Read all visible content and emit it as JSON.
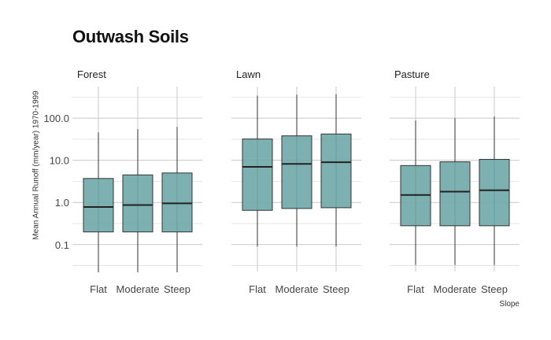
{
  "title": "Outwash Soils",
  "chart_data": {
    "type": "boxplot",
    "title": "Outwash Soils",
    "ylabel": "Mean Annual Runoff (mm/year) 1970-1999",
    "xlabel": "Slope",
    "yscale": "log10",
    "ylim": [
      0.023,
      560
    ],
    "yticks": [
      {
        "value": 0.1,
        "label": "0.1"
      },
      {
        "value": 1.0,
        "label": "1.0"
      },
      {
        "value": 10.0,
        "label": "10.0"
      },
      {
        "value": 100.0,
        "label": "100.0"
      }
    ],
    "categories": [
      "Flat",
      "Moderate",
      "Steep"
    ],
    "box_color": "#6fa8a8",
    "facets": [
      {
        "name": "Forest",
        "boxes": [
          {
            "category": "Flat",
            "min": 0.022,
            "q1": 0.2,
            "median": 0.78,
            "q3": 3.7,
            "max": 46
          },
          {
            "category": "Moderate",
            "min": 0.022,
            "q1": 0.2,
            "median": 0.87,
            "q3": 4.5,
            "max": 55
          },
          {
            "category": "Steep",
            "min": 0.022,
            "q1": 0.2,
            "median": 0.95,
            "q3": 5.0,
            "max": 62
          }
        ]
      },
      {
        "name": "Lawn",
        "boxes": [
          {
            "category": "Flat",
            "min": 0.09,
            "q1": 0.65,
            "median": 7.0,
            "q3": 32,
            "max": 340
          },
          {
            "category": "Moderate",
            "min": 0.09,
            "q1": 0.72,
            "median": 8.2,
            "q3": 38,
            "max": 360
          },
          {
            "category": "Steep",
            "min": 0.09,
            "q1": 0.75,
            "median": 9.0,
            "q3": 42,
            "max": 370
          }
        ]
      },
      {
        "name": "Pasture",
        "boxes": [
          {
            "category": "Flat",
            "min": 0.033,
            "q1": 0.28,
            "median": 1.5,
            "q3": 7.5,
            "max": 88
          },
          {
            "category": "Moderate",
            "min": 0.033,
            "q1": 0.28,
            "median": 1.8,
            "q3": 9.2,
            "max": 100
          },
          {
            "category": "Steep",
            "min": 0.033,
            "q1": 0.28,
            "median": 1.95,
            "q3": 10.5,
            "max": 110
          }
        ]
      }
    ]
  }
}
